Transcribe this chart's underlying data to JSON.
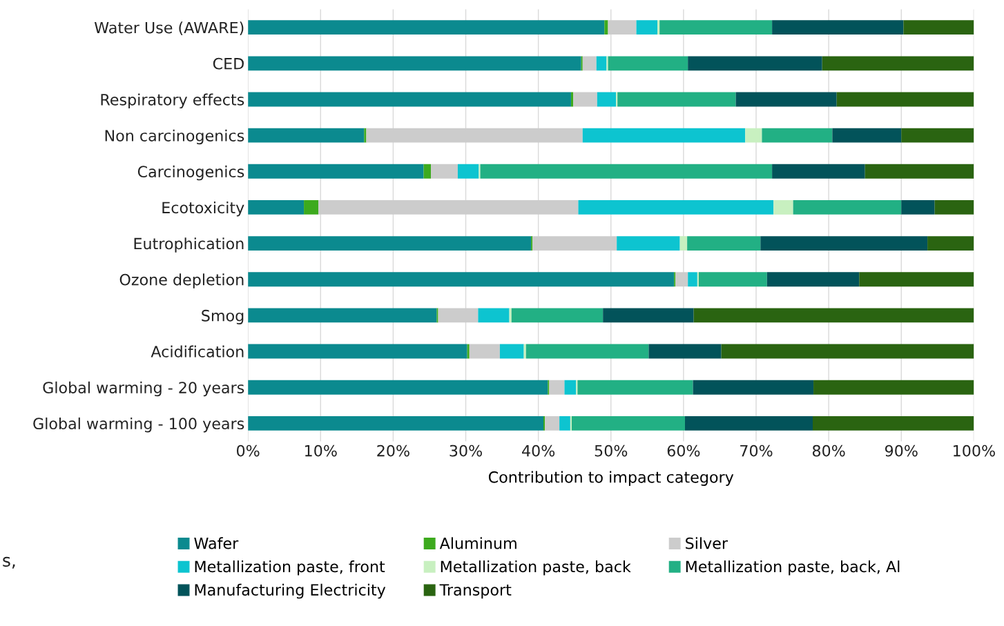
{
  "chart_data": {
    "type": "bar",
    "orientation": "horizontal",
    "stacked": true,
    "xlabel": "Contribution to impact category",
    "categories": [
      "Water Use (AWARE)",
      "CED",
      "Respiratory effects",
      "Non carcinogenics",
      "Carcinogenics",
      "Ecotoxicity",
      "Eutrophication",
      "Ozone depletion",
      "Smog",
      "Acidification",
      "Global warming - 20 years",
      "Global warming - 100 years"
    ],
    "series": [
      {
        "name": "Wafer",
        "color": "#0b8a8f",
        "values": [
          49.1,
          45.9,
          44.5,
          16.0,
          24.2,
          7.7,
          39.0,
          58.7,
          26.0,
          30.2,
          41.3,
          40.7
        ]
      },
      {
        "name": "Aluminum",
        "color": "#3daa1e",
        "values": [
          0.5,
          0.2,
          0.3,
          0.3,
          1.0,
          2.0,
          0.2,
          0.2,
          0.2,
          0.3,
          0.2,
          0.2
        ]
      },
      {
        "name": "Silver",
        "color": "#cccccc",
        "values": [
          3.9,
          1.9,
          3.3,
          29.8,
          3.7,
          35.8,
          11.6,
          1.7,
          5.5,
          4.2,
          2.1,
          2.0
        ]
      },
      {
        "name": "Metallization paste, front",
        "color": "#0dc4d0",
        "values": [
          2.9,
          1.4,
          2.6,
          22.4,
          2.9,
          26.9,
          8.7,
          1.3,
          4.3,
          3.3,
          1.6,
          1.5
        ]
      },
      {
        "name": "Metallization paste, back",
        "color": "#c8f0c0",
        "values": [
          0.3,
          0.2,
          0.2,
          2.3,
          0.2,
          2.7,
          1.0,
          0.2,
          0.3,
          0.3,
          0.2,
          0.2
        ]
      },
      {
        "name": "Metallization paste, back, Al",
        "color": "#22b084",
        "values": [
          15.5,
          11.0,
          16.3,
          9.7,
          40.2,
          14.9,
          10.1,
          9.4,
          12.6,
          16.9,
          15.9,
          15.6
        ]
      },
      {
        "name": "Manufacturing Electricity",
        "color": "#02535a",
        "values": [
          18.1,
          18.5,
          13.9,
          9.5,
          12.8,
          4.6,
          23.0,
          12.7,
          12.5,
          10.0,
          16.6,
          17.6
        ]
      },
      {
        "name": "Transport",
        "color": "#2a6411",
        "values": [
          9.7,
          20.9,
          18.9,
          10.0,
          15.0,
          5.4,
          6.4,
          15.8,
          38.6,
          34.8,
          22.1,
          22.2
        ]
      }
    ],
    "xlim": [
      0,
      100
    ],
    "xticks": [
      {
        "value": 0,
        "label": "0%"
      },
      {
        "value": 10,
        "label": "10%"
      },
      {
        "value": 20,
        "label": "20%"
      },
      {
        "value": 30,
        "label": "30%"
      },
      {
        "value": 40,
        "label": "40%"
      },
      {
        "value": 50,
        "label": "50%"
      },
      {
        "value": 60,
        "label": "60%"
      },
      {
        "value": 70,
        "label": "70%"
      },
      {
        "value": 80,
        "label": "80%"
      },
      {
        "value": 90,
        "label": "90%"
      },
      {
        "value": 100,
        "label": "100%"
      }
    ],
    "grid": "x",
    "legend": "bottom",
    "annotations": [
      "s,"
    ]
  }
}
